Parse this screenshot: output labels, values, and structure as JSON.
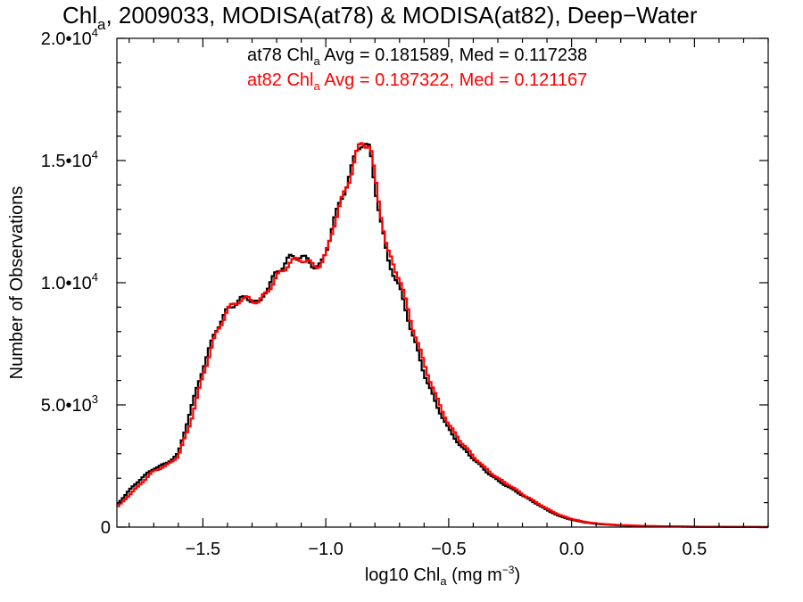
{
  "chart_data": {
    "type": "line",
    "title": {
      "pre": "Chl",
      "sub": "a",
      "post": ", 2009033, MODISA(at78) & MODISA(at82), Deep−Water"
    },
    "xlabel": {
      "pre": "log10 Chl",
      "sub": "a",
      "mid": " (mg m",
      "sup": "−3",
      "post": ")"
    },
    "ylabel": "Number of Observations",
    "xlim": [
      -1.85,
      0.8
    ],
    "ylim": [
      0,
      20000
    ],
    "x_ticks": [
      {
        "value": -1.5,
        "label": "−1.5"
      },
      {
        "value": -1.0,
        "label": "−1.0"
      },
      {
        "value": -0.5,
        "label": "−0.5"
      },
      {
        "value": 0.0,
        "label": "0.0"
      },
      {
        "value": 0.5,
        "label": "0.5"
      }
    ],
    "y_ticks": [
      {
        "value": 0,
        "mant": "0",
        "exp": ""
      },
      {
        "value": 5000,
        "mant": "5.0•10",
        "exp": "3"
      },
      {
        "value": 10000,
        "mant": "1.0•10",
        "exp": "4"
      },
      {
        "value": 15000,
        "mant": "1.5•10",
        "exp": "4"
      },
      {
        "value": 20000,
        "mant": "2.0•10",
        "exp": "4"
      }
    ],
    "annotations": [
      {
        "pre": "at78 Chl",
        "sub": "a",
        "post": " Avg = 0.181589, Med = 0.117238",
        "color": "#000000"
      },
      {
        "pre": "at82 Chl",
        "sub": "a",
        "post": " Avg = 0.187322, Med = 0.121167",
        "color": "#ff0000"
      }
    ],
    "step": 0.01,
    "series": [
      {
        "color": "#000000",
        "x": [
          -1.85,
          -1.8,
          -1.75,
          -1.7,
          -1.65,
          -1.6,
          -1.55,
          -1.5,
          -1.45,
          -1.4,
          -1.35,
          -1.32,
          -1.3,
          -1.27,
          -1.25,
          -1.2,
          -1.15,
          -1.1,
          -1.05,
          -1.02,
          -1.0,
          -0.97,
          -0.95,
          -0.9,
          -0.87,
          -0.85,
          -0.82,
          -0.8,
          -0.75,
          -0.7,
          -0.65,
          -0.6,
          -0.55,
          -0.5,
          -0.45,
          -0.4,
          -0.35,
          -0.3,
          -0.25,
          -0.2,
          -0.15,
          -0.1,
          -0.05,
          0.0,
          0.05,
          0.1,
          0.15,
          0.2,
          0.3,
          0.4,
          0.5,
          0.6,
          0.7,
          0.8
        ],
        "y": [
          900,
          1500,
          2000,
          2400,
          2600,
          3000,
          4800,
          6500,
          8000,
          8900,
          9300,
          9400,
          9300,
          9100,
          9600,
          10400,
          11000,
          11100,
          10700,
          10700,
          11200,
          12500,
          13000,
          14500,
          15500,
          15800,
          15400,
          14000,
          11000,
          9800,
          8000,
          6300,
          5000,
          4000,
          3300,
          2800,
          2300,
          1900,
          1600,
          1300,
          1000,
          700,
          450,
          300,
          200,
          130,
          100,
          70,
          40,
          25,
          15,
          10,
          5,
          0
        ]
      },
      {
        "color": "#ff0000",
        "x": [
          -1.85,
          -1.8,
          -1.75,
          -1.7,
          -1.65,
          -1.6,
          -1.55,
          -1.5,
          -1.45,
          -1.4,
          -1.35,
          -1.32,
          -1.3,
          -1.27,
          -1.25,
          -1.2,
          -1.15,
          -1.1,
          -1.05,
          -1.02,
          -1.0,
          -0.97,
          -0.95,
          -0.9,
          -0.87,
          -0.85,
          -0.82,
          -0.8,
          -0.75,
          -0.7,
          -0.65,
          -0.6,
          -0.55,
          -0.5,
          -0.45,
          -0.4,
          -0.35,
          -0.3,
          -0.25,
          -0.2,
          -0.15,
          -0.1,
          -0.05,
          0.0,
          0.05,
          0.1,
          0.15,
          0.2,
          0.3,
          0.4,
          0.5,
          0.6,
          0.7,
          0.8
        ],
        "y": [
          800,
          1300,
          1800,
          2300,
          2500,
          2900,
          4300,
          6200,
          7800,
          8900,
          9300,
          9350,
          9300,
          9200,
          9500,
          10200,
          10800,
          11000,
          10700,
          10750,
          11100,
          12300,
          12900,
          14400,
          15400,
          15800,
          15600,
          14300,
          11300,
          10200,
          8300,
          6700,
          5300,
          4200,
          3500,
          2900,
          2400,
          2000,
          1700,
          1350,
          1050,
          750,
          500,
          330,
          220,
          150,
          110,
          80,
          45,
          28,
          17,
          11,
          6,
          0
        ]
      }
    ]
  }
}
